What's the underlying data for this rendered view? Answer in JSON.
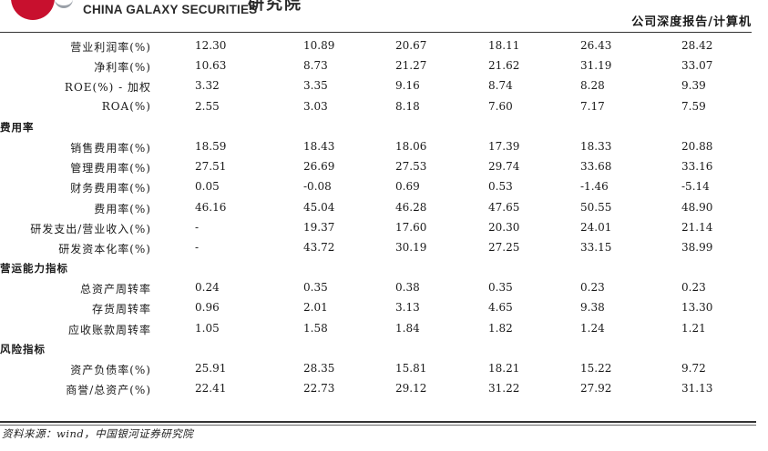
{
  "header": {
    "brand_en": "CHINA GALAXY SECURITIES",
    "brand_cn": "研究院",
    "report_type": "公司深度报告/计算机"
  },
  "rows": [
    {
      "label": "营业利润率(%)",
      "values": [
        "12.30",
        "10.89",
        "20.67",
        "18.11",
        "26.43",
        "28.42"
      ]
    },
    {
      "label": "净利率(%)",
      "values": [
        "10.63",
        "8.73",
        "21.27",
        "21.62",
        "31.19",
        "33.07"
      ]
    },
    {
      "label": "ROE(%) - 加权",
      "values": [
        "3.32",
        "3.35",
        "9.16",
        "8.74",
        "8.28",
        "9.39"
      ]
    },
    {
      "label": "ROA(%)",
      "values": [
        "2.55",
        "3.03",
        "8.18",
        "7.60",
        "7.17",
        "7.59"
      ]
    },
    {
      "section": "费用率"
    },
    {
      "label": "销售费用率(%)",
      "values": [
        "18.59",
        "18.43",
        "18.06",
        "17.39",
        "18.33",
        "20.88"
      ]
    },
    {
      "label": "管理费用率(%)",
      "values": [
        "27.51",
        "26.69",
        "27.53",
        "29.74",
        "33.68",
        "33.16"
      ]
    },
    {
      "label": "财务费用率(%)",
      "values": [
        "0.05",
        "-0.08",
        "0.69",
        "0.53",
        "-1.46",
        "-5.14"
      ]
    },
    {
      "label": "费用率(%)",
      "values": [
        "46.16",
        "45.04",
        "46.28",
        "47.65",
        "50.55",
        "48.90"
      ]
    },
    {
      "label": "研发支出/营业收入(%)",
      "values": [
        "-",
        "19.37",
        "17.60",
        "20.30",
        "24.01",
        "21.14"
      ]
    },
    {
      "label": "研发资本化率(%)",
      "values": [
        "-",
        "43.72",
        "30.19",
        "27.25",
        "33.15",
        "38.99"
      ]
    },
    {
      "section": "营运能力指标"
    },
    {
      "label": "总资产周转率",
      "values": [
        "0.24",
        "0.35",
        "0.38",
        "0.35",
        "0.23",
        "0.23"
      ]
    },
    {
      "label": "存货周转率",
      "values": [
        "0.96",
        "2.01",
        "3.13",
        "4.65",
        "9.38",
        "13.30"
      ]
    },
    {
      "label": "应收账款周转率",
      "values": [
        "1.05",
        "1.58",
        "1.84",
        "1.82",
        "1.24",
        "1.21"
      ]
    },
    {
      "section": "风险指标"
    },
    {
      "label": "资产负债率(%)",
      "values": [
        "25.91",
        "28.35",
        "15.81",
        "18.21",
        "15.22",
        "9.72"
      ]
    },
    {
      "label": "商誉/总资产(%)",
      "values": [
        "22.41",
        "22.73",
        "29.12",
        "31.22",
        "27.92",
        "31.13"
      ]
    }
  ],
  "footer": {
    "source": "资料来源：wind，中国银河证券研究院"
  }
}
